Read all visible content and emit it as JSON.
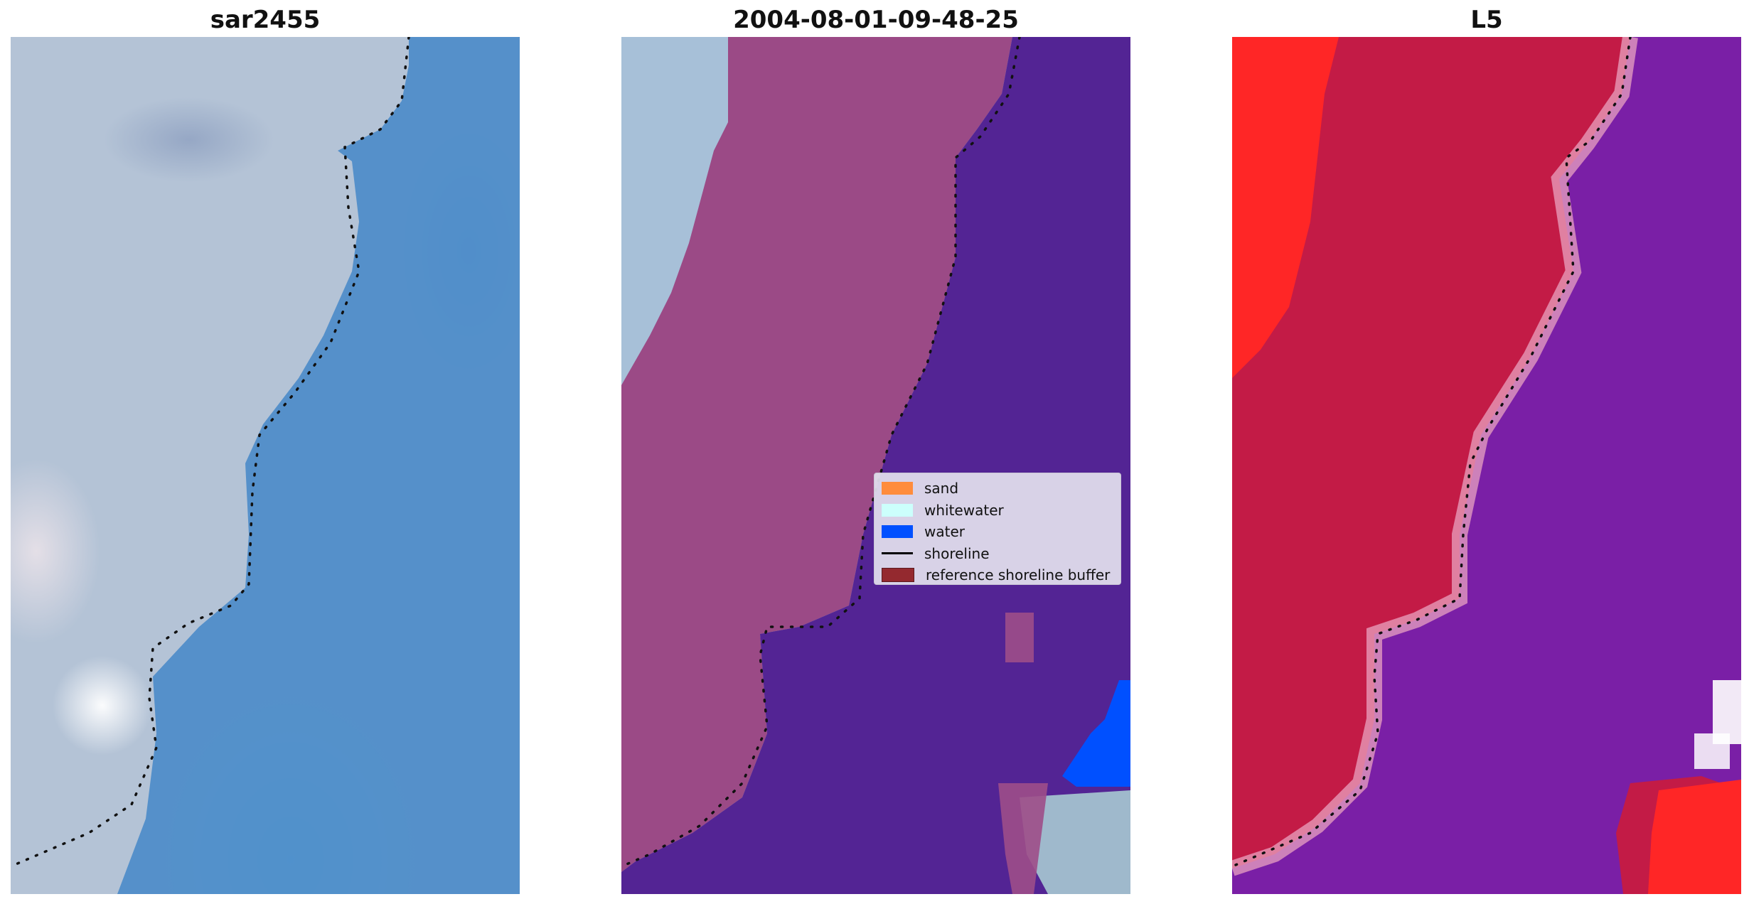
{
  "panels": [
    {
      "title": "sar2455"
    },
    {
      "title": "2004-08-01-09-48-25"
    },
    {
      "title": "L5"
    }
  ],
  "legend": {
    "items": [
      {
        "label": "sand",
        "color": "#ff8c3c"
      },
      {
        "label": "whitewater",
        "color": "#ccfffc"
      },
      {
        "label": "water",
        "color": "#0050ff"
      },
      {
        "label": "shoreline",
        "color": "#000000"
      },
      {
        "label": "reference shoreline buffer",
        "color": "#94292f"
      }
    ]
  },
  "colors": {
    "sand_overlay": "#9b4a86",
    "water_overlay": "#532494",
    "l5_land": "#c31b46",
    "l5_water": "#7a1fa6"
  }
}
